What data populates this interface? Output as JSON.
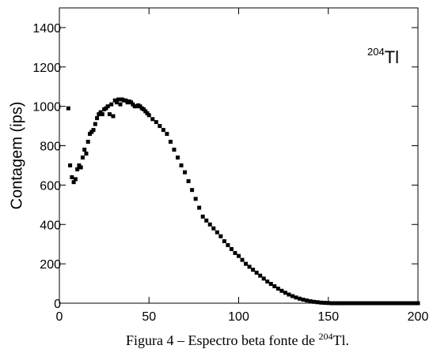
{
  "chart_data": {
    "type": "scatter",
    "y_label": "Contagem (ips)",
    "annotation": {
      "sup": "204",
      "text": "Tl"
    },
    "caption": {
      "before": "Figura 4 – Espectro beta fonte de ",
      "sup": "204",
      "after": "Tl."
    },
    "color": "#000000",
    "x": [
      5,
      6,
      7,
      8,
      9,
      10,
      11,
      12,
      13,
      14,
      15,
      16,
      17,
      18,
      19,
      20,
      21,
      22,
      23,
      24,
      25,
      26,
      27,
      28,
      29,
      30,
      31,
      32,
      33,
      34,
      35,
      36,
      37,
      38,
      39,
      40,
      41,
      42,
      43,
      44,
      45,
      46,
      47,
      48,
      49,
      50,
      52,
      54,
      56,
      58,
      60,
      62,
      64,
      66,
      68,
      70,
      72,
      74,
      76,
      78,
      80,
      82,
      84,
      86,
      88,
      90,
      92,
      94,
      96,
      98,
      100,
      102,
      104,
      106,
      108,
      110,
      112,
      114,
      116,
      118,
      120,
      122,
      124,
      126,
      128,
      130,
      132,
      134,
      136,
      138,
      140,
      142,
      144,
      146,
      148,
      150,
      152,
      154,
      156,
      158,
      160,
      162,
      164,
      166,
      168,
      170,
      172,
      174,
      176,
      178,
      180,
      182,
      184,
      186,
      188,
      190,
      192,
      194,
      196,
      198,
      200
    ],
    "values": [
      990,
      700,
      640,
      615,
      630,
      680,
      700,
      690,
      740,
      780,
      760,
      820,
      860,
      870,
      880,
      910,
      940,
      960,
      970,
      960,
      985,
      990,
      1000,
      960,
      1010,
      950,
      1030,
      1020,
      1035,
      1010,
      1035,
      1030,
      1030,
      1020,
      1025,
      1020,
      1010,
      1000,
      1000,
      1005,
      1000,
      990,
      985,
      975,
      965,
      955,
      935,
      920,
      900,
      880,
      860,
      820,
      780,
      740,
      700,
      665,
      620,
      575,
      530,
      485,
      440,
      420,
      400,
      380,
      360,
      340,
      315,
      295,
      275,
      255,
      240,
      220,
      200,
      185,
      170,
      155,
      140,
      125,
      110,
      98,
      86,
      74,
      63,
      53,
      44,
      36,
      29,
      23,
      18,
      14,
      10,
      7,
      5,
      3,
      2,
      1,
      0,
      0,
      0,
      0,
      0,
      0,
      0,
      0,
      0,
      0,
      0,
      0,
      0,
      0,
      0,
      0,
      0,
      0,
      0,
      0,
      0,
      0,
      0,
      0,
      0
    ],
    "xlim": [
      0,
      200
    ],
    "xticks": [
      0,
      50,
      100,
      150,
      200
    ],
    "ylim": [
      0,
      1500
    ],
    "yticks": [
      0,
      200,
      400,
      600,
      800,
      1000,
      1200,
      1400
    ]
  }
}
